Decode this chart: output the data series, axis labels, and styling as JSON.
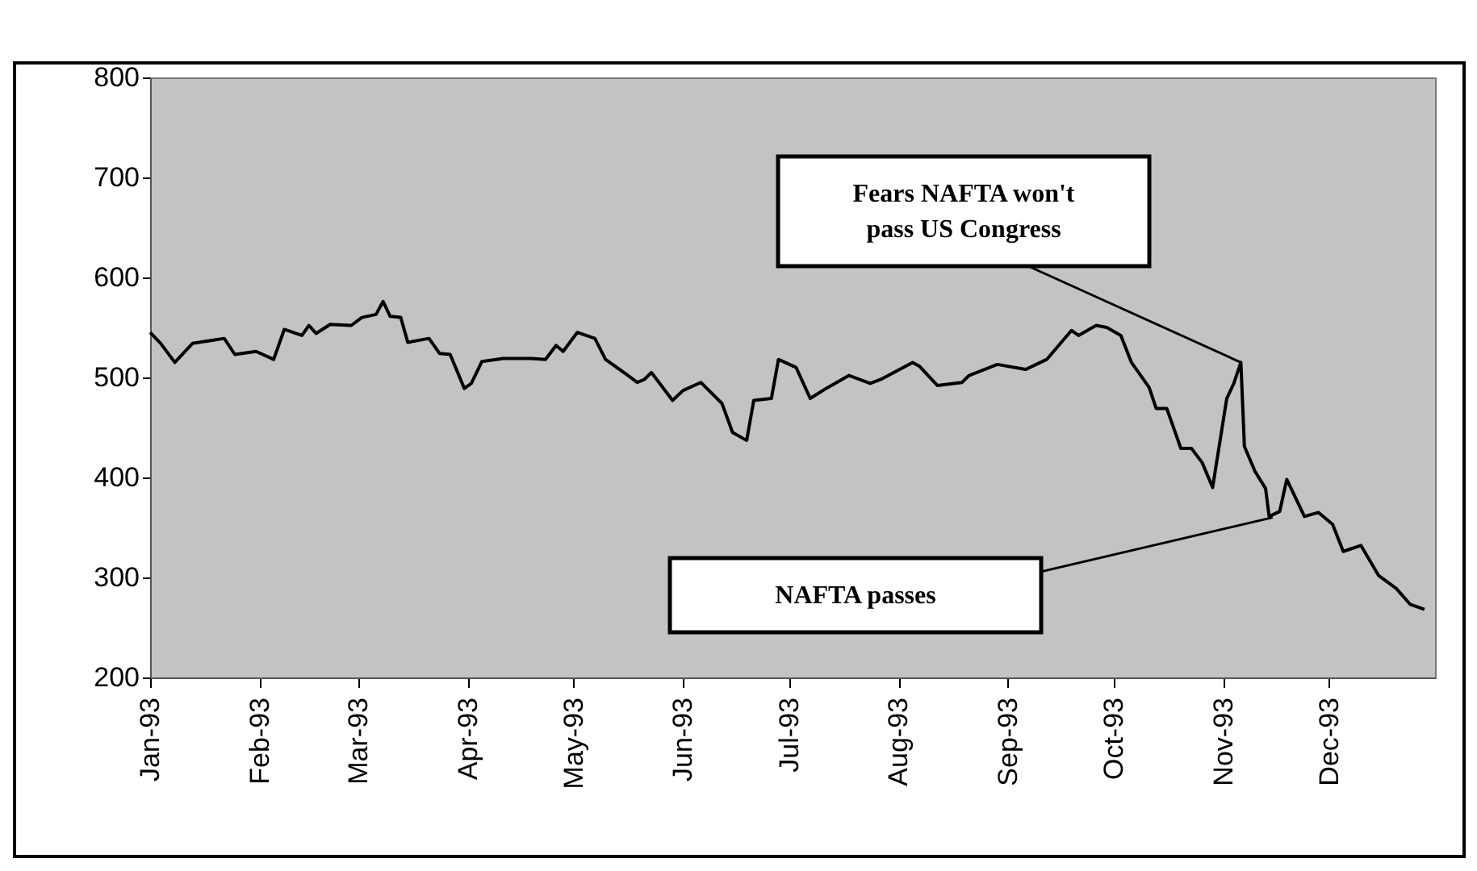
{
  "chart_data": {
    "type": "line",
    "x": [
      "1993-01-01",
      "1993-01-04",
      "1993-01-08",
      "1993-01-13",
      "1993-01-22",
      "1993-01-25",
      "1993-01-31",
      "1993-02-05",
      "1993-02-08",
      "1993-02-13",
      "1993-02-15",
      "1993-02-17",
      "1993-02-21",
      "1993-02-27",
      "1993-03-02",
      "1993-03-06",
      "1993-03-08",
      "1993-03-10",
      "1993-03-13",
      "1993-03-15",
      "1993-03-21",
      "1993-03-24",
      "1993-03-27",
      "1993-03-31",
      "1993-04-02",
      "1993-04-05",
      "1993-04-11",
      "1993-04-19",
      "1993-04-23",
      "1993-04-26",
      "1993-04-28",
      "1993-05-02",
      "1993-05-07",
      "1993-05-10",
      "1993-05-16",
      "1993-05-19",
      "1993-05-21",
      "1993-05-23",
      "1993-05-29",
      "1993-06-01",
      "1993-06-06",
      "1993-06-12",
      "1993-06-15",
      "1993-06-19",
      "1993-06-21",
      "1993-06-26",
      "1993-06-28",
      "1993-07-03",
      "1993-07-07",
      "1993-07-12",
      "1993-07-18",
      "1993-07-24",
      "1993-07-27",
      "1993-08-05",
      "1993-08-07",
      "1993-08-12",
      "1993-08-19",
      "1993-08-21",
      "1993-08-29",
      "1993-09-06",
      "1993-09-12",
      "1993-09-19",
      "1993-09-21",
      "1993-09-26",
      "1993-09-29",
      "1993-10-03",
      "1993-10-06",
      "1993-10-11",
      "1993-10-13",
      "1993-10-16",
      "1993-10-20",
      "1993-10-23",
      "1993-10-26",
      "1993-10-29",
      "1993-11-02",
      "1993-11-04",
      "1993-11-06",
      "1993-11-07",
      "1993-11-10",
      "1993-11-13",
      "1993-11-14",
      "1993-11-17",
      "1993-11-19",
      "1993-11-24",
      "1993-11-28",
      "1993-12-02",
      "1993-12-05",
      "1993-12-10",
      "1993-12-15",
      "1993-12-20",
      "1993-12-24",
      "1993-12-28"
    ],
    "series": [
      {
        "color": "#000000",
        "values": [
          545,
          534,
          515,
          534,
          539,
          523,
          526,
          518,
          548,
          542,
          552,
          544,
          553,
          552,
          560,
          563,
          576,
          561,
          560,
          535,
          539,
          524,
          523,
          489,
          494,
          516,
          519,
          519,
          518,
          532,
          526,
          545,
          539,
          518,
          503,
          495,
          498,
          505,
          477,
          487,
          495,
          474,
          445,
          437,
          477,
          479,
          518,
          510,
          479,
          490,
          502,
          494,
          498,
          515,
          511,
          492,
          495,
          502,
          513,
          508,
          518,
          547,
          542,
          552,
          550,
          542,
          515,
          490,
          469,
          469,
          429,
          429,
          415,
          390,
          479,
          494,
          515,
          431,
          406,
          389,
          361,
          366,
          398,
          361,
          365,
          353,
          326,
          332,
          302,
          289,
          273,
          268
        ]
      }
    ],
    "xlim": [
      "1993-01-01",
      "1993-12-31"
    ],
    "xticks": [
      {
        "value": "1993-01-01",
        "label": "Jan-93"
      },
      {
        "value": "1993-02-01",
        "label": "Feb-93"
      },
      {
        "value": "1993-03-01",
        "label": "Mar-93"
      },
      {
        "value": "1993-04-01",
        "label": "Apr-93"
      },
      {
        "value": "1993-05-01",
        "label": "May-93"
      },
      {
        "value": "1993-06-01",
        "label": "Jun-93"
      },
      {
        "value": "1993-07-01",
        "label": "Jul-93"
      },
      {
        "value": "1993-08-01",
        "label": "Aug-93"
      },
      {
        "value": "1993-09-01",
        "label": "Sep-93"
      },
      {
        "value": "1993-10-01",
        "label": "Oct-93"
      },
      {
        "value": "1993-11-01",
        "label": "Nov-93"
      },
      {
        "value": "1993-12-01",
        "label": "Dec-93"
      }
    ],
    "ylim": [
      200,
      800
    ],
    "yticks": [
      200,
      300,
      400,
      500,
      600,
      700,
      800
    ],
    "annotations": [
      {
        "text": "Fears NAFTA won't pass US Congress",
        "x": "1993-11-06",
        "y": 515
      },
      {
        "text": "NAFTA passes",
        "x": "1993-11-15",
        "y": 360
      }
    ]
  }
}
